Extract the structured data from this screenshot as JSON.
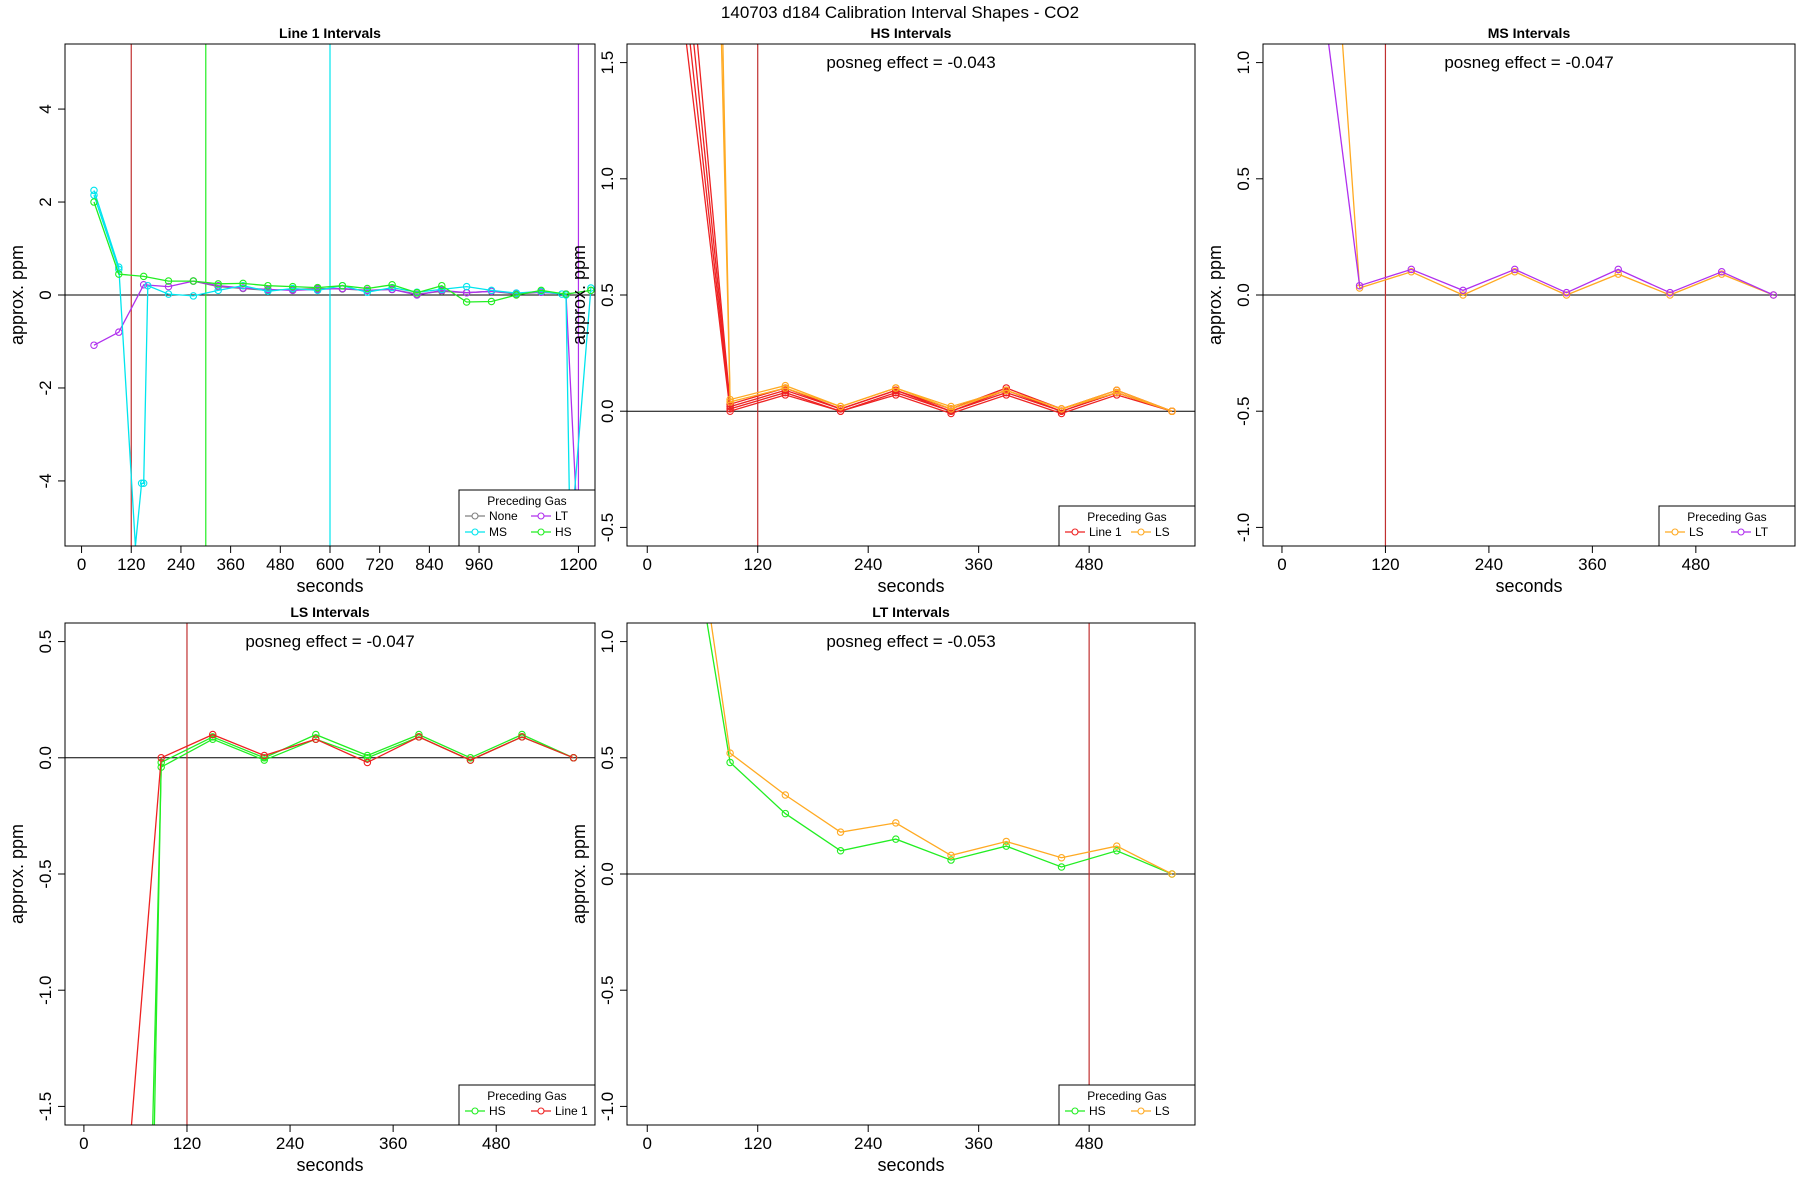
{
  "page_title": "140703  d184   Calibration Interval Shapes - CO2",
  "colors": {
    "None": "#808080",
    "MS": "#00e5ee",
    "LT": "#b030ee",
    "HS": "#22ee22",
    "Line 1": "#ee2222",
    "LS": "#ffaa22",
    "vline": "#c03030"
  },
  "chart_data": [
    {
      "type": "line",
      "title": "Line 1 Intervals",
      "annotation": "",
      "xlabel": "seconds",
      "ylabel": "approx. ppm",
      "xlim": [
        -40,
        1240
      ],
      "ylim": [
        -5.4,
        5.4
      ],
      "xticks": [
        0,
        120,
        240,
        360,
        480,
        600,
        720,
        840,
        960,
        1200
      ],
      "yticks": [
        -4,
        -2,
        0,
        2,
        4
      ],
      "hline": 0,
      "vlines": [
        {
          "x": 120,
          "color": "#c03030"
        },
        {
          "x": 300,
          "color": "#22ee22"
        },
        {
          "x": 600,
          "color": "#00e5ee"
        },
        {
          "x": 1200,
          "color": "#b030ee"
        }
      ],
      "legend": {
        "title": "Preceding Gas",
        "position": "bottom-right",
        "columns": 2,
        "entries": [
          "None",
          "LT",
          "MS",
          "HS"
        ]
      },
      "series": [
        {
          "name": "None",
          "x": [
            270,
            330,
            390,
            450,
            510,
            570,
            630,
            690,
            750,
            810,
            870,
            930,
            990,
            1050,
            1110,
            1170,
            1230
          ],
          "y": [
            0.3,
            0.18,
            0.14,
            0.1,
            0.12,
            0.14,
            0.13,
            0.1,
            0.12,
            0.02,
            0.08,
            0.05,
            0.08,
            0.02,
            0.06,
            0.02,
            0.1
          ]
        },
        {
          "name": "LT",
          "x": [
            30,
            90,
            150,
            210,
            270,
            330,
            390,
            450,
            510,
            570,
            630,
            690,
            750,
            810,
            870,
            930,
            990,
            1050,
            1110,
            1170,
            1200
          ],
          "y": [
            -1.08,
            -0.8,
            0.22,
            0.18,
            0.3,
            0.2,
            0.15,
            0.12,
            0.1,
            0.12,
            0.14,
            0.1,
            0.12,
            0.0,
            0.1,
            0.05,
            0.08,
            0.04,
            0.06,
            0.02,
            -5.4
          ]
        },
        {
          "name": "MS",
          "x": [
            30,
            90,
            130,
            145,
            150,
            160,
            210,
            270,
            330,
            390,
            450,
            510,
            570,
            630,
            690,
            750,
            810,
            870,
            930,
            990,
            1050,
            1110,
            1160,
            1170,
            1180,
            1230
          ],
          "y": [
            2.25,
            0.6,
            -5.4,
            -4.05,
            -4.05,
            0.2,
            0.02,
            -0.02,
            0.1,
            0.2,
            0.08,
            0.14,
            0.1,
            0.2,
            0.06,
            0.16,
            0.06,
            0.12,
            0.18,
            0.1,
            0.04,
            0.08,
            0.02,
            0.0,
            -5.4,
            0.15
          ]
        },
        {
          "name": "MS",
          "x": [
            30,
            90
          ],
          "y": [
            2.15,
            0.55
          ]
        },
        {
          "name": "HS",
          "x": [
            30,
            90,
            150,
            210,
            270,
            330,
            390,
            450,
            510,
            570,
            630,
            690,
            750,
            810,
            870,
            930,
            990,
            1050,
            1110,
            1170,
            1230
          ],
          "y": [
            2.0,
            0.45,
            0.4,
            0.3,
            0.3,
            0.24,
            0.25,
            0.2,
            0.18,
            0.16,
            0.2,
            0.14,
            0.22,
            0.05,
            0.2,
            -0.15,
            -0.14,
            0.0,
            0.1,
            0.02,
            0.1
          ]
        }
      ]
    },
    {
      "type": "line",
      "title": "HS Intervals",
      "annotation": "posneg effect = -0.043",
      "xlabel": "seconds",
      "ylabel": "approx. ppm",
      "xlim": [
        -22,
        595
      ],
      "ylim": [
        -0.58,
        1.58
      ],
      "xticks": [
        0,
        120,
        240,
        360,
        480
      ],
      "yticks": [
        -0.5,
        0.0,
        0.5,
        1.0,
        1.5
      ],
      "hline": 0,
      "vlines": [
        {
          "x": 120,
          "color": "#c03030"
        }
      ],
      "legend": {
        "title": "Preceding Gas",
        "position": "bottom-right",
        "columns": 2,
        "entries": [
          "Line 1",
          "LS"
        ]
      },
      "series": [
        {
          "name": "Line 1",
          "x": [
            30,
            90,
            150,
            210,
            270,
            330,
            390,
            450,
            510,
            570
          ],
          "y": [
            2.0,
            0.0,
            0.07,
            0.0,
            0.07,
            -0.01,
            0.07,
            -0.01,
            0.07,
            0.0
          ]
        },
        {
          "name": "Line 1",
          "x": [
            35,
            90,
            150,
            210,
            270,
            330,
            390,
            450,
            510,
            570
          ],
          "y": [
            2.0,
            0.01,
            0.08,
            0.0,
            0.08,
            0.0,
            0.08,
            0.0,
            0.08,
            0.0
          ]
        },
        {
          "name": "Line 1",
          "x": [
            40,
            90,
            150,
            210,
            270,
            330,
            390,
            450,
            510,
            570
          ],
          "y": [
            2.0,
            0.02,
            0.09,
            0.01,
            0.09,
            0.0,
            0.09,
            0.0,
            0.08,
            0.0
          ]
        },
        {
          "name": "Line 1",
          "x": [
            45,
            90,
            150,
            210,
            270,
            330,
            390,
            450,
            510,
            570
          ],
          "y": [
            2.0,
            0.03,
            0.1,
            0.01,
            0.09,
            0.01,
            0.1,
            0.01,
            0.09,
            0.0
          ]
        },
        {
          "name": "LS",
          "x": [
            78,
            90,
            150,
            210,
            270,
            330,
            390,
            450,
            510,
            570
          ],
          "y": [
            2.0,
            0.05,
            0.11,
            0.02,
            0.1,
            0.02,
            0.09,
            0.01,
            0.09,
            0.0
          ]
        },
        {
          "name": "LS",
          "x": [
            80,
            90,
            150,
            210,
            270,
            330,
            390,
            450,
            510,
            570
          ],
          "y": [
            2.0,
            0.04,
            0.1,
            0.02,
            0.1,
            0.01,
            0.09,
            0.01,
            0.08,
            0.0
          ]
        }
      ]
    },
    {
      "type": "line",
      "title": "MS Intervals",
      "annotation": "posneg effect = -0.047",
      "xlabel": "seconds",
      "ylabel": "approx. ppm",
      "xlim": [
        -22,
        595
      ],
      "ylim": [
        -1.08,
        1.08
      ],
      "xticks": [
        0,
        120,
        240,
        360,
        480
      ],
      "yticks": [
        -1.0,
        -0.5,
        0.0,
        0.5,
        1.0
      ],
      "hline": 0,
      "vlines": [
        {
          "x": 120,
          "color": "#c03030"
        }
      ],
      "legend": {
        "title": "Preceding Gas",
        "position": "bottom-right",
        "columns": 2,
        "entries": [
          "LS",
          "LT"
        ]
      },
      "series": [
        {
          "name": "LS",
          "x": [
            68,
            90,
            150,
            210,
            270,
            330,
            390,
            450,
            510,
            570
          ],
          "y": [
            1.2,
            0.03,
            0.1,
            0.0,
            0.1,
            0.0,
            0.09,
            0.0,
            0.09,
            0.0
          ]
        },
        {
          "name": "LT",
          "x": [
            50,
            90,
            150,
            210,
            270,
            330,
            390,
            450,
            510,
            570
          ],
          "y": [
            1.2,
            0.04,
            0.11,
            0.02,
            0.11,
            0.01,
            0.11,
            0.01,
            0.1,
            0.0
          ]
        }
      ]
    },
    {
      "type": "line",
      "title": "LS Intervals",
      "annotation": "posneg effect = -0.047",
      "xlabel": "seconds",
      "ylabel": "approx. ppm",
      "xlim": [
        -22,
        595
      ],
      "ylim": [
        -1.58,
        0.58
      ],
      "xticks": [
        0,
        120,
        240,
        360,
        480
      ],
      "yticks": [
        -1.5,
        -1.0,
        -0.5,
        0.0,
        0.5
      ],
      "hline": 0,
      "vlines": [
        {
          "x": 120,
          "color": "#c03030"
        }
      ],
      "legend": {
        "title": "Preceding Gas",
        "position": "bottom-right",
        "columns": 2,
        "entries": [
          "HS",
          "Line 1"
        ]
      },
      "series": [
        {
          "name": "HS",
          "x": [
            80,
            90,
            150,
            210,
            270,
            330,
            390,
            450,
            510,
            570
          ],
          "y": [
            -1.6,
            -0.04,
            0.08,
            -0.01,
            0.08,
            0.0,
            0.09,
            -0.01,
            0.09,
            0.0
          ]
        },
        {
          "name": "HS",
          "x": [
            82,
            90,
            150,
            210,
            270,
            330,
            390,
            450,
            510,
            570
          ],
          "y": [
            -1.6,
            -0.02,
            0.09,
            0.0,
            0.1,
            0.01,
            0.1,
            0.0,
            0.1,
            0.0
          ]
        },
        {
          "name": "Line 1",
          "x": [
            55,
            90,
            150,
            210,
            270,
            330,
            390,
            450,
            510,
            570
          ],
          "y": [
            -1.6,
            0.0,
            0.1,
            0.01,
            0.08,
            -0.02,
            0.09,
            -0.01,
            0.09,
            0.0
          ]
        }
      ]
    },
    {
      "type": "line",
      "title": "LT Intervals",
      "annotation": "posneg effect = -0.053",
      "xlabel": "seconds",
      "ylabel": "approx. ppm",
      "xlim": [
        -22,
        595
      ],
      "ylim": [
        -1.08,
        1.08
      ],
      "xticks": [
        0,
        120,
        240,
        360,
        480
      ],
      "yticks": [
        -1.0,
        -0.5,
        0.0,
        0.5,
        1.0
      ],
      "hline": 0,
      "vlines": [
        {
          "x": 480,
          "color": "#c03030"
        }
      ],
      "legend": {
        "title": "Preceding Gas",
        "position": "bottom-right",
        "columns": 2,
        "entries": [
          "HS",
          "LS"
        ]
      },
      "series": [
        {
          "name": "HS",
          "x": [
            60,
            90,
            150,
            210,
            270,
            330,
            390,
            450,
            510,
            570
          ],
          "y": [
            1.2,
            0.48,
            0.26,
            0.1,
            0.15,
            0.06,
            0.12,
            0.03,
            0.1,
            0.0
          ]
        },
        {
          "name": "LS",
          "x": [
            65,
            90,
            150,
            210,
            270,
            330,
            390,
            450,
            510,
            570
          ],
          "y": [
            1.2,
            0.52,
            0.34,
            0.18,
            0.22,
            0.08,
            0.14,
            0.07,
            0.12,
            0.0
          ]
        }
      ]
    }
  ]
}
